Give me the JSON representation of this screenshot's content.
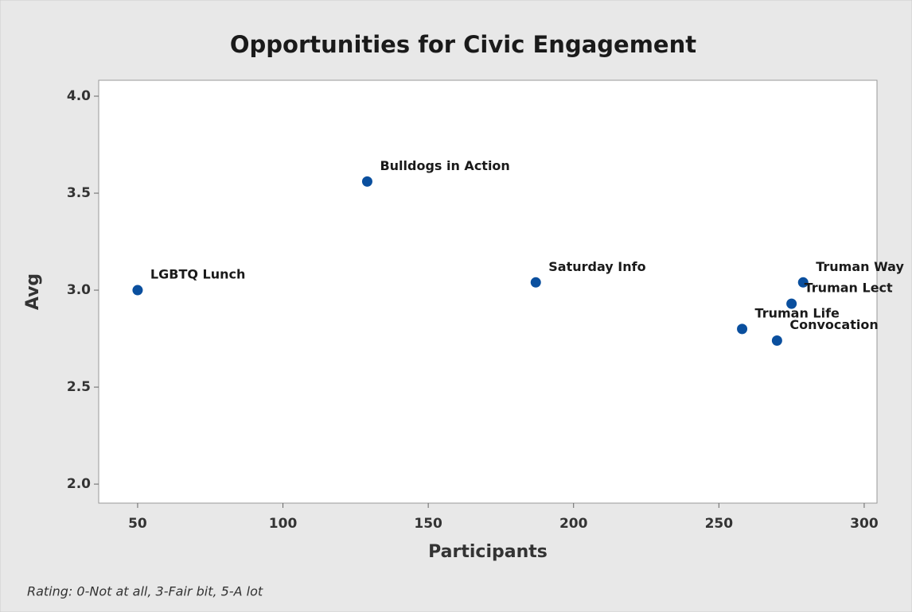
{
  "chart_data": {
    "type": "scatter",
    "title": "Opportunities for Civic Engagement",
    "x_label": "Participants",
    "y_label": "Avg",
    "footnote": "Rating: 0-Not at all, 3-Fair bit, 5-A lot",
    "color": "#0a4f9e",
    "labels": [
      "LGBTQ Lunch",
      "Bulldogs in Action",
      "Saturday Info",
      "Truman Way",
      "Truman Lect",
      "Truman Life",
      "Convocation"
    ],
    "x": [
      50,
      129,
      187,
      279,
      275,
      258,
      270
    ],
    "values": [
      3.0,
      3.56,
      3.04,
      3.04,
      2.93,
      2.8,
      2.74
    ],
    "xlim": [
      36.6,
      304.4
    ],
    "ylim": [
      1.902,
      4.082
    ],
    "xticks": [
      50,
      100,
      150,
      200,
      250,
      300
    ],
    "yticks": [
      {
        "value": 2.0,
        "label": "2.0"
      },
      {
        "value": 2.5,
        "label": "2.5"
      },
      {
        "value": 3.0,
        "label": "3.0"
      },
      {
        "value": 3.5,
        "label": "3.5"
      },
      {
        "value": 4.0,
        "label": "4.0"
      }
    ],
    "grid": false
  }
}
